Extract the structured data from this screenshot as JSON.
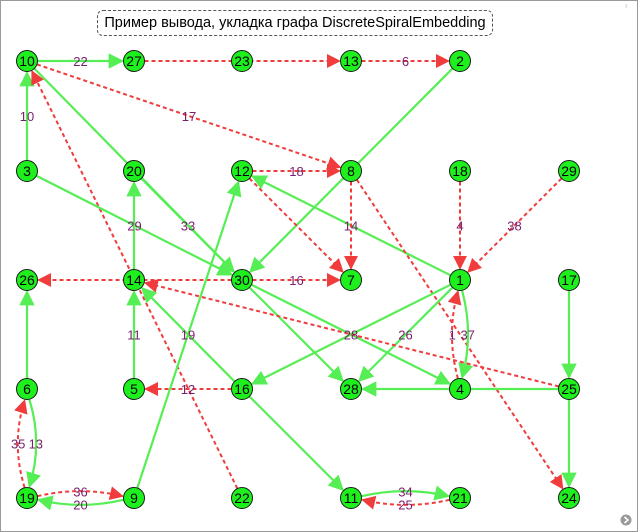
{
  "title": "Пример вывода, укладка графа DiscreteSpiralEmbedding",
  "corner_mark": "⁾",
  "colors": {
    "node_fill": "#1ef01e",
    "green_edge": "#55ee55",
    "red_edge": "#f03c3c",
    "label": "#7a1f6e"
  },
  "nodes": [
    {
      "id": "10",
      "label": "10"
    },
    {
      "id": "27",
      "label": "27"
    },
    {
      "id": "23",
      "label": "23"
    },
    {
      "id": "13",
      "label": "13"
    },
    {
      "id": "2",
      "label": "2"
    },
    {
      "id": "3",
      "label": "3"
    },
    {
      "id": "20",
      "label": "20"
    },
    {
      "id": "12",
      "label": "12"
    },
    {
      "id": "8",
      "label": "8"
    },
    {
      "id": "18",
      "label": "18"
    },
    {
      "id": "29",
      "label": "29"
    },
    {
      "id": "26",
      "label": "26"
    },
    {
      "id": "14",
      "label": "14"
    },
    {
      "id": "30",
      "label": "30"
    },
    {
      "id": "7",
      "label": "7"
    },
    {
      "id": "1",
      "label": "1"
    },
    {
      "id": "17",
      "label": "17"
    },
    {
      "id": "6",
      "label": "6"
    },
    {
      "id": "5",
      "label": "5"
    },
    {
      "id": "16",
      "label": "16"
    },
    {
      "id": "28",
      "label": "28"
    },
    {
      "id": "4",
      "label": "4"
    },
    {
      "id": "25",
      "label": "25"
    },
    {
      "id": "19",
      "label": "19"
    },
    {
      "id": "9",
      "label": "9"
    },
    {
      "id": "22",
      "label": "22"
    },
    {
      "id": "11",
      "label": "11"
    },
    {
      "id": "21",
      "label": "21"
    },
    {
      "id": "24",
      "label": "24"
    }
  ],
  "edges": [
    {
      "from": "10",
      "to": "27",
      "label": "22",
      "style": "solid",
      "bend": 0
    },
    {
      "from": "27",
      "to": "13",
      "label": "",
      "style": "dashed",
      "bend": 0
    },
    {
      "from": "13",
      "to": "2",
      "label": "6",
      "style": "dashed",
      "bend": 0
    },
    {
      "from": "3",
      "to": "10",
      "label": "10",
      "style": "solid",
      "bend": 0
    },
    {
      "from": "10",
      "to": "8",
      "label": "17",
      "style": "dashed",
      "bend": 0
    },
    {
      "from": "10",
      "to": "30",
      "label": "",
      "style": "solid",
      "bend": 0
    },
    {
      "from": "22",
      "to": "10",
      "label": "",
      "style": "dashed",
      "bend": 0
    },
    {
      "from": "2",
      "to": "30",
      "label": "",
      "style": "solid",
      "bend": 0
    },
    {
      "from": "12",
      "to": "8",
      "label": "18",
      "style": "dashed",
      "bend": 0
    },
    {
      "from": "1",
      "to": "12",
      "label": "",
      "style": "solid",
      "bend": 0
    },
    {
      "from": "8",
      "to": "7",
      "label": "14",
      "style": "dashed",
      "bend": 0
    },
    {
      "from": "12",
      "to": "7",
      "label": "",
      "style": "dashed",
      "bend": 0
    },
    {
      "from": "8",
      "to": "24",
      "label": "",
      "style": "dashed",
      "bend": 0
    },
    {
      "from": "18",
      "to": "1",
      "label": "4",
      "style": "dashed",
      "bend": 0
    },
    {
      "from": "29",
      "to": "1",
      "label": "38",
      "style": "dashed",
      "bend": 0
    },
    {
      "from": "3",
      "to": "30",
      "label": "29",
      "style": "solid",
      "bend": 0
    },
    {
      "from": "14",
      "to": "20",
      "label": "",
      "style": "solid",
      "bend": 0
    },
    {
      "from": "20",
      "to": "30",
      "label": "33",
      "style": "solid",
      "bend": 0
    },
    {
      "from": "30",
      "to": "26",
      "label": "15",
      "style": "dashed",
      "bend": 0
    },
    {
      "from": "30",
      "to": "7",
      "label": "16",
      "style": "dashed",
      "bend": 0
    },
    {
      "from": "30",
      "to": "28",
      "label": "",
      "style": "solid",
      "bend": 0
    },
    {
      "from": "30",
      "to": "4",
      "label": "",
      "style": "solid",
      "bend": 0
    },
    {
      "from": "1",
      "to": "16",
      "label": "28",
      "style": "solid",
      "bend": 0
    },
    {
      "from": "1",
      "to": "28",
      "label": "26",
      "style": "solid",
      "bend": 0
    },
    {
      "from": "4",
      "to": "1",
      "label": "1",
      "style": "dashed",
      "bend": -14
    },
    {
      "from": "1",
      "to": "4",
      "label": "37",
      "style": "solid",
      "bend": -14
    },
    {
      "from": "25",
      "to": "14",
      "label": "",
      "style": "dashed",
      "bend": 0
    },
    {
      "from": "17",
      "to": "25",
      "label": "",
      "style": "solid",
      "bend": 0
    },
    {
      "from": "25",
      "to": "24",
      "label": "",
      "style": "solid",
      "bend": 0
    },
    {
      "from": "25",
      "to": "28",
      "label": "",
      "style": "solid",
      "bend": 0
    },
    {
      "from": "5",
      "to": "14",
      "label": "11",
      "style": "solid",
      "bend": 0
    },
    {
      "from": "16",
      "to": "14",
      "label": "19",
      "style": "solid",
      "bend": 0
    },
    {
      "from": "16",
      "to": "5",
      "label": "12",
      "style": "dashed",
      "bend": 0
    },
    {
      "from": "16",
      "to": "11",
      "label": "",
      "style": "solid",
      "bend": 0
    },
    {
      "from": "9",
      "to": "12",
      "label": "",
      "style": "solid",
      "bend": 0
    },
    {
      "from": "6",
      "to": "26",
      "label": "",
      "style": "solid",
      "bend": 0
    },
    {
      "from": "19",
      "to": "6",
      "label": "35",
      "style": "dashed",
      "bend": -16
    },
    {
      "from": "6",
      "to": "19",
      "label": "13",
      "style": "solid",
      "bend": -16
    },
    {
      "from": "19",
      "to": "9",
      "label": "36",
      "style": "dashed",
      "bend": -12
    },
    {
      "from": "9",
      "to": "19",
      "label": "20",
      "style": "solid",
      "bend": -12
    },
    {
      "from": "11",
      "to": "21",
      "label": "34",
      "style": "solid",
      "bend": -12
    },
    {
      "from": "21",
      "to": "11",
      "label": "25",
      "style": "dashed",
      "bend": -12
    }
  ]
}
